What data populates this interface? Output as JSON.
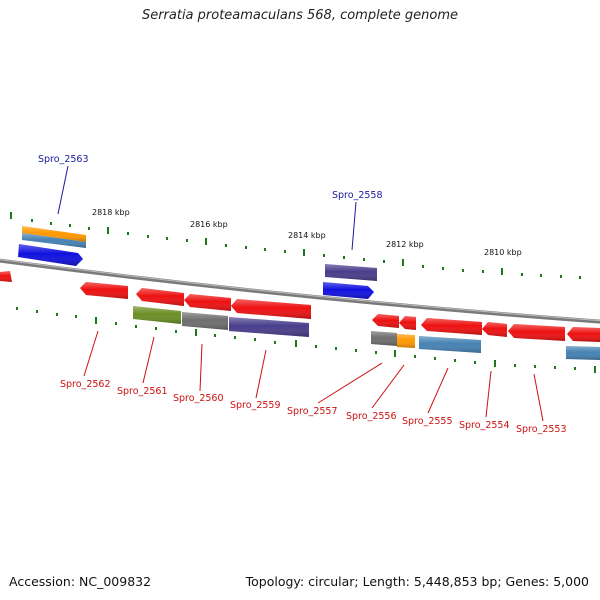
{
  "title": "Serratia proteamaculans 568, complete genome",
  "footer": {
    "accession": "Accession: NC_009832",
    "summary": "Topology: circular; Length: 5,448,853 bp; Genes: 5,000"
  },
  "scale_labels": [
    "2818 kbp",
    "2816 kbp",
    "2814 kbp",
    "2812 kbp",
    "2810 kbp"
  ],
  "top_labels": [
    "Spro_2563",
    "Spro_2558"
  ],
  "bottom_labels": [
    "Spro_2562",
    "Spro_2561",
    "Spro_2560",
    "Spro_2559",
    "Spro_2557",
    "Spro_2556",
    "Spro_2555",
    "Spro_2554",
    "Spro_2553"
  ],
  "colors": {
    "backbone": "#7a7a7a",
    "gene_red": "#ee1111",
    "gene_blue": "#1010e0",
    "label_top": "#1a1aa0",
    "label_bottom": "#cc1111",
    "tick": "#1a7a1a",
    "orange": "#ff9900",
    "steel": "#4682b4",
    "olive": "#6b8e23",
    "gray": "#6e6e6e",
    "slate": "#483d8b"
  }
}
